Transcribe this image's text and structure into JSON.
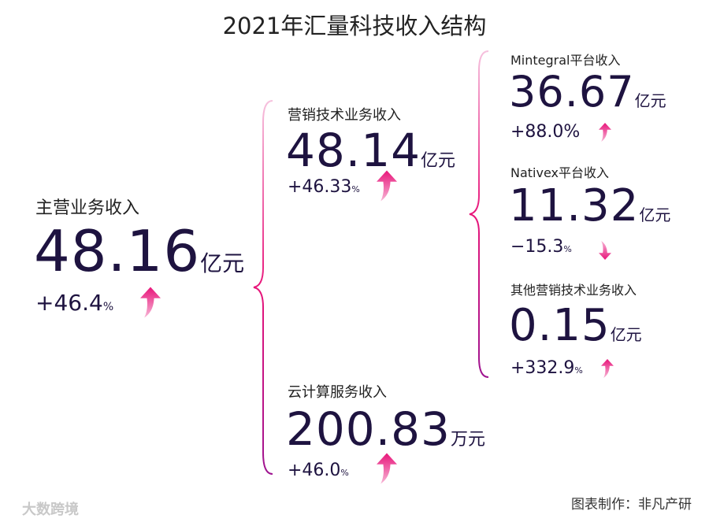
{
  "title": "2021年汇量科技收入结构",
  "colors": {
    "value": "#1e1340",
    "accent": "#e8157a",
    "brace_top": "#f3a6cf",
    "brace_bottom": "#a0148c"
  },
  "main": {
    "label": "主营业务收入",
    "value": "48.16",
    "unit": "亿元",
    "change": "+46.4",
    "pct": "%",
    "trend": "up-arrow-icon"
  },
  "marketing": {
    "label": "营销技术业务收入",
    "value": "48.14",
    "unit": "亿元",
    "change": "+46.33",
    "pct": "%",
    "trend": "up-arrow-icon"
  },
  "cloud": {
    "label": "云计算服务收入",
    "value": "200.83",
    "unit": "万元",
    "change": "+46.0",
    "pct": "%",
    "trend": "up-arrow-icon"
  },
  "mintegral": {
    "label": "Mintegral平台收入",
    "value": "36.67",
    "unit": "亿元",
    "change": "+88.0",
    "pct": "%",
    "trend": "up-arrow-icon"
  },
  "nativex": {
    "label": "Nativex平台收入",
    "value": "11.32",
    "unit": "亿元",
    "change": "−15.3",
    "pct": "%",
    "trend": "down-arrow-icon"
  },
  "other": {
    "label": "其他营销技术业务收入",
    "value": "0.15",
    "unit": "亿元",
    "change": "+332.9",
    "pct": "%",
    "trend": "up-arrow-icon"
  },
  "footer": {
    "credit": "图表制作：非凡产研",
    "watermark": "大数跨境"
  }
}
